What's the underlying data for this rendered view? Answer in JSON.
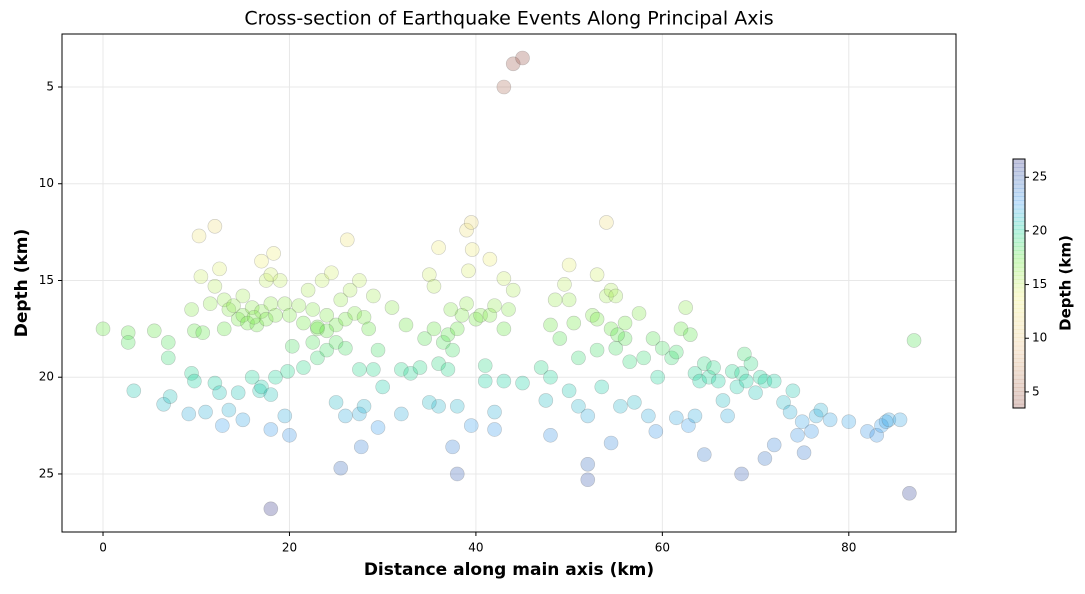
{
  "chart_data": {
    "type": "scatter",
    "title": "Cross-section of Earthquake Events Along Principal Axis",
    "xlabel": "Distance along main axis (km)",
    "ylabel": "Depth (km)",
    "xlim": [
      -4.4,
      91.5
    ],
    "xticks": [
      0,
      20,
      40,
      60,
      80
    ],
    "ylim": [
      2.26,
      28.0
    ],
    "yticks": [
      5,
      10,
      15,
      20,
      25
    ],
    "invert_y": true,
    "grid": true,
    "colormap": "terrain_r",
    "alpha": 0.3,
    "colorbar": {
      "label": "Depth (km)",
      "clim": [
        3.5,
        26.7
      ],
      "ticks": [
        5,
        10,
        15,
        20,
        25
      ]
    },
    "x": [
      0,
      2.7,
      2.7,
      3.3,
      5.5,
      6.5,
      7,
      7,
      7.2,
      9.5,
      9.8,
      10.3,
      10.5,
      10.7,
      11.5,
      12,
      12,
      12.5,
      13,
      13.5,
      14,
      14.5,
      15,
      15.5,
      16,
      16.5,
      17,
      17.5,
      17.5,
      18,
      18.3,
      18.5,
      19,
      19.5,
      20,
      18,
      15,
      13,
      16.2,
      17,
      20.3,
      9.5,
      9.8,
      11,
      12,
      12.5,
      12.8,
      13.5,
      14.5,
      15,
      16,
      16.8,
      17,
      18,
      18,
      18.5,
      19.5,
      20,
      19.8,
      9.2,
      18,
      21,
      21.5,
      22,
      22.5,
      23,
      23.5,
      24,
      24.5,
      25,
      25.5,
      26,
      26.5,
      27,
      27.5,
      28,
      28.5,
      26.2,
      29,
      29.5,
      22.5,
      23,
      24,
      25,
      26,
      27.5,
      21.5,
      25,
      26,
      27.5,
      28,
      29.5,
      30,
      29,
      25.5,
      27.7,
      23,
      24,
      31,
      32,
      32.5,
      33,
      34,
      32,
      34.5,
      35,
      35.5,
      36,
      35.5,
      36.5,
      37,
      37.5,
      38,
      38.5,
      37.3,
      36,
      37,
      38,
      36,
      35,
      37.5,
      38,
      39,
      39.5,
      39.6,
      39.2,
      39,
      40,
      40.5,
      41,
      41.5,
      42,
      41.5,
      42,
      42,
      41,
      43,
      43.5,
      43,
      43,
      44,
      45,
      39.5,
      43,
      44,
      45,
      47,
      47.5,
      48,
      48,
      48.5,
      48,
      49,
      49.5,
      50,
      50,
      50,
      50.5,
      51,
      51,
      52,
      52,
      52,
      52.5,
      53,
      53,
      53.5,
      54,
      54,
      54.5,
      54.5,
      55,
      55,
      53,
      54.5,
      55.5,
      56,
      56.5,
      57,
      57.5,
      58,
      58.5,
      59,
      59.5,
      59.3,
      56,
      55.2,
      60,
      61,
      61.5,
      62,
      62.5,
      63,
      63.5,
      64,
      64.5,
      65,
      65.5,
      66,
      66.5,
      67,
      67.5,
      68,
      68.5,
      69,
      69.5,
      70,
      70.5,
      71,
      61.5,
      62.8,
      63.5,
      64.5,
      68.5,
      71,
      72,
      72,
      68.8,
      73,
      73.7,
      74,
      74.5,
      75,
      75.2,
      76,
      76.5,
      77,
      78,
      80,
      82,
      83,
      83.5,
      84,
      84.3,
      85.5,
      86.5,
      87
    ],
    "values": [
      17.5,
      17.7,
      18.2,
      20.7,
      17.6,
      21.4,
      18.2,
      19,
      21,
      16.5,
      17.6,
      12.7,
      14.8,
      17.7,
      16.2,
      12.2,
      15.3,
      14.4,
      16,
      16.5,
      16.3,
      17,
      16.8,
      17.2,
      16.4,
      17.3,
      16.6,
      15,
      17,
      14.7,
      13.6,
      16.8,
      15,
      16.2,
      16.8,
      16.2,
      15.8,
      17.5,
      16.9,
      14,
      18.4,
      19.8,
      20.2,
      21.8,
      20.3,
      20.8,
      22.5,
      21.7,
      20.8,
      22.2,
      20,
      20.7,
      20.5,
      20.9,
      22.7,
      20,
      22,
      23,
      19.7,
      21.9,
      26.8,
      16.3,
      17.2,
      15.5,
      16.5,
      17.5,
      15,
      16.8,
      14.6,
      17.3,
      16,
      17,
      15.5,
      16.7,
      15,
      16.9,
      17.5,
      12.9,
      15.8,
      18.6,
      18.2,
      19,
      18.6,
      18.2,
      18.5,
      19.6,
      19.5,
      21.3,
      22,
      21.9,
      21.5,
      22.6,
      20.5,
      19.6,
      24.7,
      23.6,
      17.4,
      17.6,
      16.4,
      19.6,
      17.3,
      19.8,
      19.5,
      21.9,
      18,
      14.7,
      15.3,
      13.3,
      17.5,
      18.2,
      17.8,
      18.6,
      17.5,
      16.8,
      16.5,
      19.3,
      19.6,
      21.5,
      21.5,
      21.3,
      23.6,
      25,
      12.4,
      12,
      13.4,
      14.5,
      16.2,
      17,
      16.8,
      19.4,
      16.8,
      16.3,
      13.9,
      21.8,
      22.7,
      20.2,
      14.9,
      16.5,
      17.5,
      20.2,
      15.5,
      20.3,
      22.5,
      5,
      3.8,
      3.5,
      19.5,
      21.2,
      20,
      17.3,
      16,
      23,
      18,
      15.2,
      14.2,
      16,
      20.7,
      17.2,
      21.5,
      19,
      22,
      24.5,
      25.3,
      16.8,
      14.7,
      17,
      20.5,
      12,
      15.8,
      15.5,
      17.5,
      18.5,
      15.8,
      18.6,
      23.4,
      21.5,
      17.2,
      19.2,
      21.3,
      16.7,
      19,
      22,
      18,
      20,
      22.8,
      18,
      17.8,
      18.5,
      19,
      18.7,
      17.5,
      16.4,
      17.8,
      19.8,
      20.2,
      19.3,
      20,
      19.5,
      20.2,
      21.2,
      22,
      19.7,
      20.5,
      19.8,
      20.2,
      19.3,
      20.8,
      20,
      20.2,
      22.1,
      22.5,
      22,
      24,
      25,
      24.2,
      23.5,
      20.2,
      18.8,
      21.3,
      21.8,
      20.7,
      23,
      22.3,
      23.9,
      22.8,
      22,
      21.7,
      22.2,
      22.3,
      22.8,
      23,
      22.5,
      22.3,
      22.2,
      22.2,
      26,
      18.1
    ]
  }
}
